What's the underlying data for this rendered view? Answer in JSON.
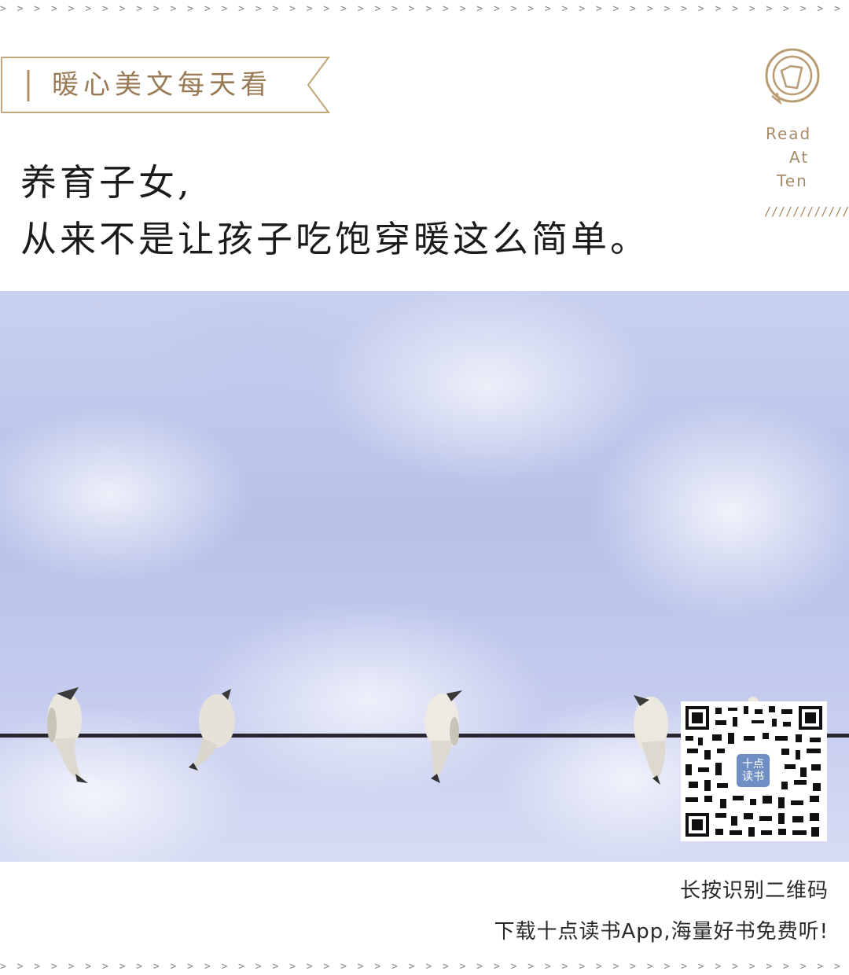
{
  "decor": {
    "dashes": "> > > > > > > > > > > > > > > > > > > > > > > > > > > > > > > > > > > > > > > > > > > > > > > > > > > > > > > > > > > > > > > > > > > > > > > > > > > > > > >",
    "slashes": "////////////////"
  },
  "header": {
    "tag": "暖心美文每天看",
    "brand_lines": [
      "Read",
      "At",
      "Ten"
    ]
  },
  "headline": {
    "line1": "养育子女,",
    "line2": "从来不是让孩子吃饱穿暖这么简单。"
  },
  "photo": {
    "subject": "birds-on-wire"
  },
  "qr": {
    "badge": "十点\n读书"
  },
  "footer": {
    "line1": "长按识别二维码",
    "line2": "下载十点读书App,海量好书免费听!"
  },
  "colors": {
    "accent": "#a88b67",
    "sky": "#c3cbee"
  }
}
